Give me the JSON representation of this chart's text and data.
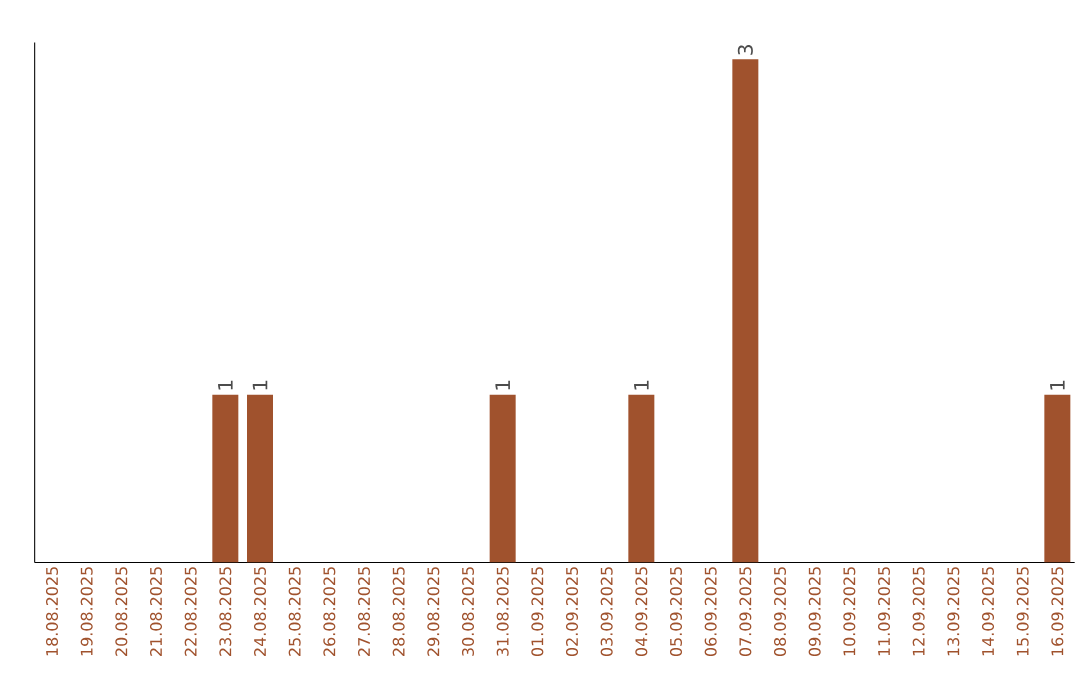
{
  "chart_data": {
    "type": "bar",
    "categories": [
      "18.08.2025",
      "19.08.2025",
      "20.08.2025",
      "21.08.2025",
      "22.08.2025",
      "23.08.2025",
      "24.08.2025",
      "25.08.2025",
      "26.08.2025",
      "27.08.2025",
      "28.08.2025",
      "29.08.2025",
      "30.08.2025",
      "31.08.2025",
      "01.09.2025",
      "02.09.2025",
      "03.09.2025",
      "04.09.2025",
      "05.09.2025",
      "06.09.2025",
      "07.09.2025",
      "08.09.2025",
      "09.09.2025",
      "10.09.2025",
      "11.09.2025",
      "12.09.2025",
      "13.09.2025",
      "14.09.2025",
      "15.09.2025",
      "16.09.2025"
    ],
    "values": [
      0,
      0,
      0,
      0,
      0,
      1,
      1,
      0,
      0,
      0,
      0,
      0,
      0,
      1,
      0,
      0,
      0,
      1,
      0,
      0,
      3,
      0,
      0,
      0,
      0,
      0,
      0,
      0,
      0,
      1
    ],
    "value_labels": [
      null,
      null,
      null,
      null,
      null,
      "1",
      "1",
      null,
      null,
      null,
      null,
      null,
      null,
      "1",
      null,
      null,
      null,
      "1",
      null,
      null,
      "3",
      null,
      null,
      null,
      null,
      null,
      null,
      null,
      null,
      "1"
    ],
    "color": "#a0522d",
    "ylim": [
      0,
      3.1
    ],
    "tick_labels": "x"
  }
}
